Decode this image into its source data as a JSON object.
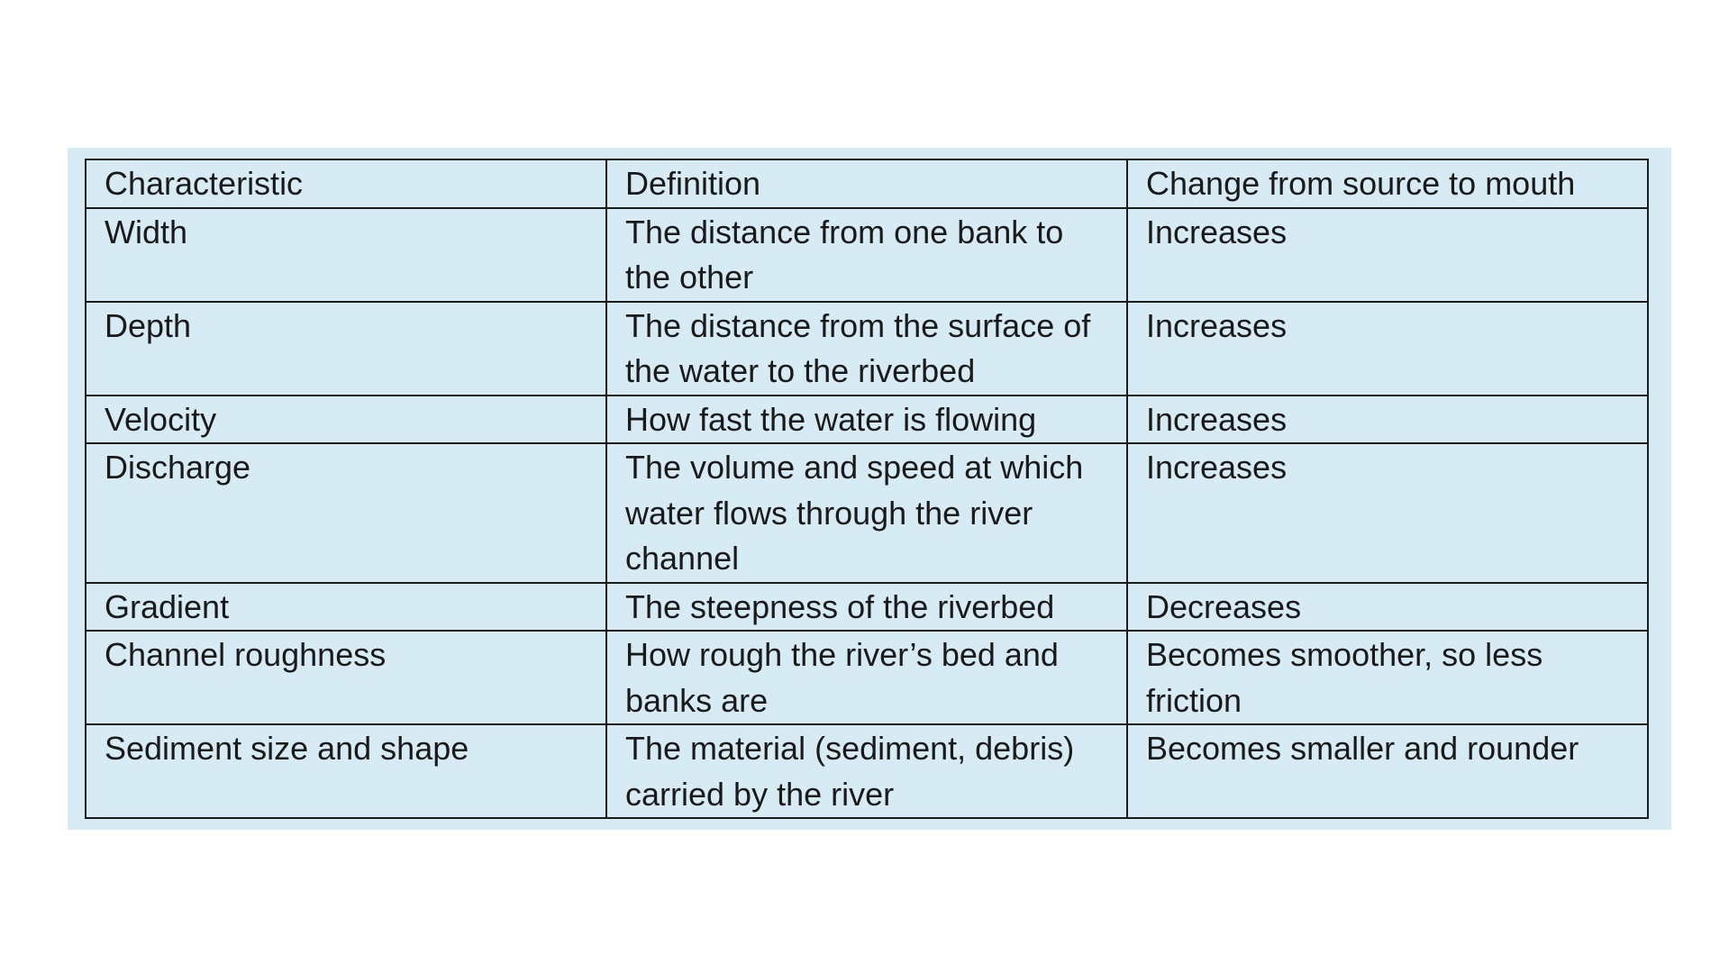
{
  "table": {
    "headers": [
      "Characteristic",
      "Definition",
      "Change from source to mouth"
    ],
    "rows": [
      [
        "Width",
        "The distance from one bank to the other",
        "Increases"
      ],
      [
        "Depth",
        "The distance from the surface of the water to the riverbed",
        "Increases"
      ],
      [
        "Velocity",
        "How fast the water is flowing",
        "Increases"
      ],
      [
        "Discharge",
        "The volume and speed at which water flows through the river channel",
        "Increases"
      ],
      [
        "Gradient",
        "The steepness of the riverbed",
        "Decreases"
      ],
      [
        "Channel roughness",
        "How rough the river’s bed and banks are",
        "Becomes smoother, so less friction"
      ],
      [
        "Sediment size and shape",
        "The material (sediment, debris) carried by the river",
        "Becomes smaller and rounder"
      ]
    ]
  },
  "colors": {
    "panel_background": "#d6ebf4",
    "border": "#1c1c1c",
    "text": "#1a1a1a",
    "page_background": "#ffffff"
  }
}
